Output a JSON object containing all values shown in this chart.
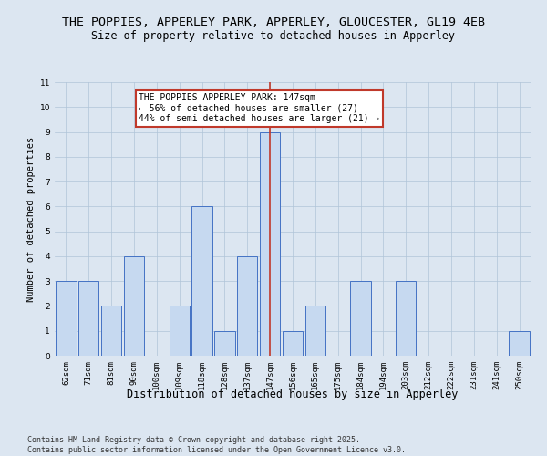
{
  "title": "THE POPPIES, APPERLEY PARK, APPERLEY, GLOUCESTER, GL19 4EB",
  "subtitle": "Size of property relative to detached houses in Apperley",
  "xlabel": "Distribution of detached houses by size in Apperley",
  "ylabel": "Number of detached properties",
  "categories": [
    "62sqm",
    "71sqm",
    "81sqm",
    "90sqm",
    "100sqm",
    "109sqm",
    "118sqm",
    "128sqm",
    "137sqm",
    "147sqm",
    "156sqm",
    "165sqm",
    "175sqm",
    "184sqm",
    "194sqm",
    "203sqm",
    "212sqm",
    "222sqm",
    "231sqm",
    "241sqm",
    "250sqm"
  ],
  "values": [
    3,
    3,
    2,
    4,
    0,
    2,
    6,
    1,
    4,
    9,
    1,
    2,
    0,
    3,
    0,
    3,
    0,
    0,
    0,
    0,
    1
  ],
  "bar_color": "#c6d9f0",
  "bar_edge_color": "#4472c4",
  "highlight_index": 9,
  "highlight_line_color": "#c0392b",
  "annotation_text": "THE POPPIES APPERLEY PARK: 147sqm\n← 56% of detached houses are smaller (27)\n44% of semi-detached houses are larger (21) →",
  "annotation_box_color": "#c0392b",
  "ylim": [
    0,
    11
  ],
  "yticks": [
    0,
    1,
    2,
    3,
    4,
    5,
    6,
    7,
    8,
    9,
    10,
    11
  ],
  "grid_color": "#b0c4d8",
  "background_color": "#dce6f1",
  "footer_text": "Contains HM Land Registry data © Crown copyright and database right 2025.\nContains public sector information licensed under the Open Government Licence v3.0.",
  "title_fontsize": 9.5,
  "subtitle_fontsize": 8.5,
  "xlabel_fontsize": 8.5,
  "ylabel_fontsize": 7.5,
  "tick_fontsize": 6.5,
  "annotation_fontsize": 7,
  "footer_fontsize": 6
}
